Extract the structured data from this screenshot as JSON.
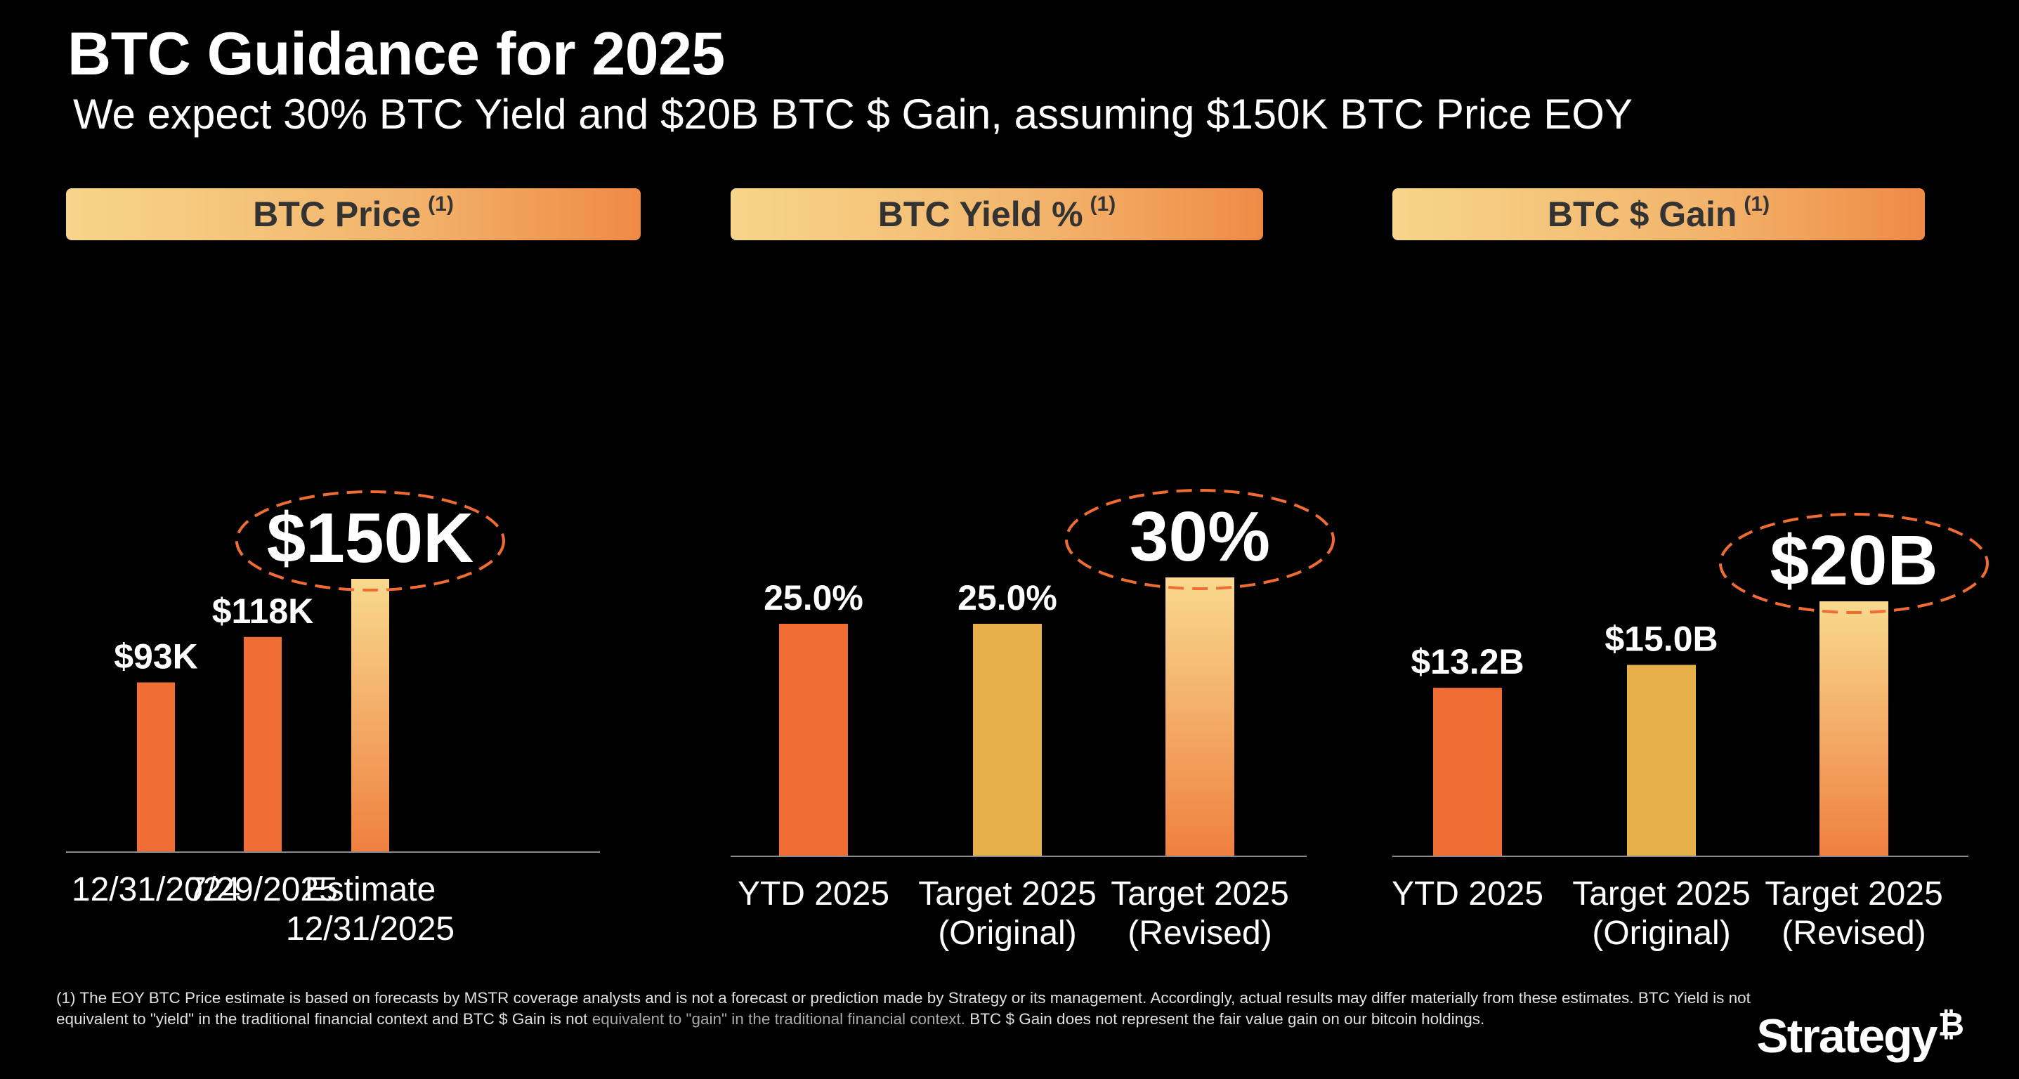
{
  "title": "BTC Guidance for 2025",
  "subtitle": "We expect 30% BTC Yield and $20B BTC $ Gain, assuming $150K BTC Price EOY",
  "colors": {
    "actual": "#ef6c33",
    "original": "#e8b04a",
    "estimate_top": "#f8d98e",
    "estimate_bottom": "#ef8040",
    "highlight_ring": "#ef6c33"
  },
  "chart_data": [
    {
      "type": "bar",
      "header": "BTC Price",
      "header_note": "(1)",
      "categories": [
        [
          "12/31/2024"
        ],
        [
          "7/29/2025"
        ],
        [
          "Estimate",
          "12/31/2025"
        ]
      ],
      "values": [
        93,
        118,
        150
      ],
      "unit": "K USD",
      "value_labels": [
        "$93K",
        "$118K",
        "$150K"
      ],
      "bar_styles": [
        "actual",
        "actual",
        "estimate"
      ],
      "highlight_index": 2,
      "ylim": [
        0,
        150
      ]
    },
    {
      "type": "bar",
      "header": "BTC Yield %",
      "header_note": "(1)",
      "categories": [
        [
          "YTD 2025"
        ],
        [
          "Target 2025",
          "(Original)"
        ],
        [
          "Target 2025",
          "(Revised)"
        ]
      ],
      "values": [
        25.0,
        25.0,
        30
      ],
      "unit": "%",
      "value_labels": [
        "25.0%",
        "25.0%",
        "30%"
      ],
      "bar_styles": [
        "actual",
        "original",
        "estimate"
      ],
      "highlight_index": 2,
      "ylim": [
        0,
        30
      ]
    },
    {
      "type": "bar",
      "header": "BTC $ Gain",
      "header_note": "(1)",
      "categories": [
        [
          "YTD 2025"
        ],
        [
          "Target 2025",
          "(Original)"
        ],
        [
          "Target 2025",
          "(Revised)"
        ]
      ],
      "values": [
        13.2,
        15.0,
        20
      ],
      "unit": "B USD",
      "value_labels": [
        "$13.2B",
        "$15.0B",
        "$20B"
      ],
      "bar_styles": [
        "actual",
        "original",
        "estimate"
      ],
      "highlight_index": 2,
      "ylim": [
        0,
        20
      ]
    }
  ],
  "footnote": {
    "main": "(1) The EOY BTC Price estimate is based on forecasts by MSTR coverage analysts and is not a forecast or prediction made by Strategy or its management. Accordingly, actual results may differ materially from these estimates. BTC Yield is not equivalent to \"yield\" in the traditional financial context and BTC $ Gain is not",
    "muted": "equivalent to \"gain\" in the traditional financial context.",
    "tail": "BTC $ Gain does not represent the fair value gain on our bitcoin holdings."
  },
  "logo": {
    "text": "Strategy",
    "mark": "₿"
  }
}
